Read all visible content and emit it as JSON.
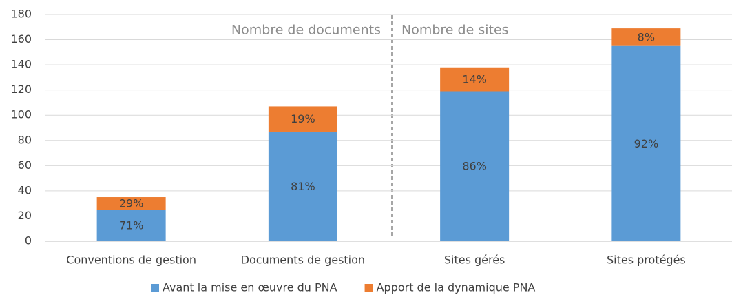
{
  "chart_data": {
    "type": "stacked_bar",
    "categories": [
      "Conventions de gestion",
      "Documents de gestion",
      "Sites gérés",
      "Sites protégés"
    ],
    "series": [
      {
        "name": "Avant la mise en œuvre du PNA",
        "color": "#5b9bd5",
        "values": [
          25,
          87,
          119,
          155
        ],
        "share_labels": [
          "71%",
          "81%",
          "86%",
          "92%"
        ]
      },
      {
        "name": "Apport de la dynamique PNA",
        "color": "#ed7d31",
        "values": [
          10,
          20,
          19,
          14
        ],
        "share_labels": [
          "29%",
          "19%",
          "14%",
          "8%"
        ]
      }
    ],
    "annotations": [
      "Nombre de documents",
      "Nombre de sites"
    ],
    "ylim": [
      0,
      180
    ],
    "yticks": [
      0,
      20,
      40,
      60,
      80,
      100,
      120,
      140,
      160,
      180
    ],
    "grid": true,
    "legend": "bottom"
  }
}
